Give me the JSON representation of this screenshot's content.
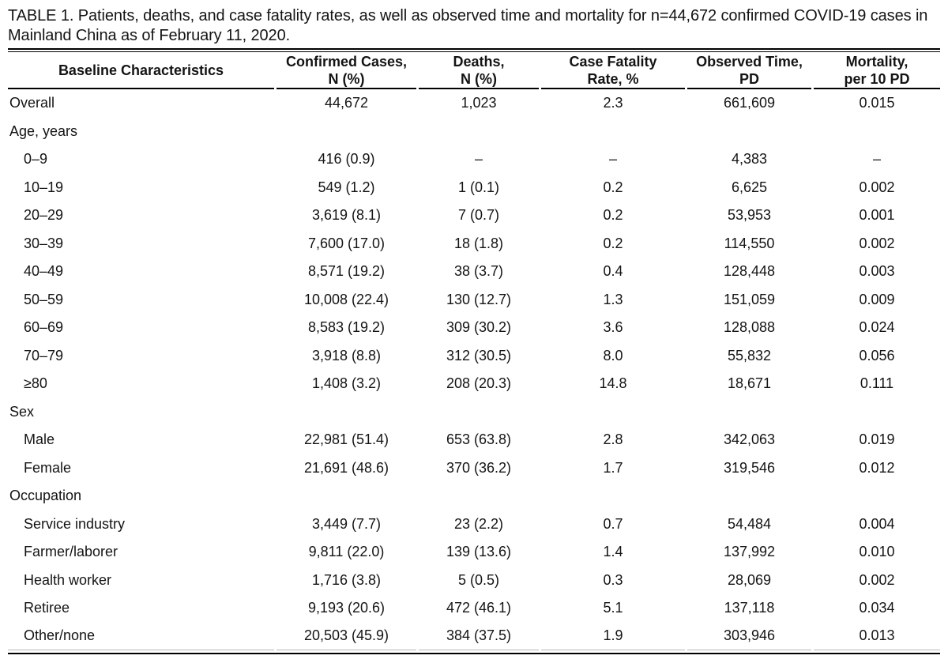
{
  "title": "TABLE 1. Patients, deaths, and case fatality rates, as well as observed time and mortality for n=44,672 confirmed COVID-19 cases in Mainland China as of February 11, 2020.",
  "colors": {
    "background": "#ffffff",
    "text": "#141414",
    "heavy_rule": "#000000",
    "light_rule": "#b8b8b8"
  },
  "table": {
    "columns": [
      {
        "line1": "Baseline Characteristics",
        "line2": ""
      },
      {
        "line1": "Confirmed Cases,",
        "line2": "N (%)"
      },
      {
        "line1": "Deaths,",
        "line2": "N (%)"
      },
      {
        "line1": "Case Fatality",
        "line2": "Rate, %"
      },
      {
        "line1": "Observed Time,",
        "line2": "PD"
      },
      {
        "line1": "Mortality,",
        "line2": "per 10 PD"
      }
    ],
    "missing_value_marker": "–",
    "rows": [
      {
        "label": "Overall",
        "indent": false,
        "section": false,
        "cells": [
          "44,672",
          "1,023",
          "2.3",
          "661,609",
          "0.015"
        ]
      },
      {
        "label": "Age, years",
        "indent": false,
        "section": true,
        "cells": [
          "",
          "",
          "",
          "",
          ""
        ]
      },
      {
        "label": "0–9",
        "indent": true,
        "section": false,
        "cells": [
          "416 (0.9)",
          "–",
          "–",
          "4,383",
          "–"
        ]
      },
      {
        "label": "10–19",
        "indent": true,
        "section": false,
        "cells": [
          "549 (1.2)",
          "1 (0.1)",
          "0.2",
          "6,625",
          "0.002"
        ]
      },
      {
        "label": "20–29",
        "indent": true,
        "section": false,
        "cells": [
          "3,619 (8.1)",
          "7 (0.7)",
          "0.2",
          "53,953",
          "0.001"
        ]
      },
      {
        "label": "30–39",
        "indent": true,
        "section": false,
        "cells": [
          "7,600 (17.0)",
          "18 (1.8)",
          "0.2",
          "114,550",
          "0.002"
        ]
      },
      {
        "label": "40–49",
        "indent": true,
        "section": false,
        "cells": [
          "8,571 (19.2)",
          "38 (3.7)",
          "0.4",
          "128,448",
          "0.003"
        ]
      },
      {
        "label": "50–59",
        "indent": true,
        "section": false,
        "cells": [
          "10,008 (22.4)",
          "130 (12.7)",
          "1.3",
          "151,059",
          "0.009"
        ]
      },
      {
        "label": "60–69",
        "indent": true,
        "section": false,
        "cells": [
          "8,583 (19.2)",
          "309 (30.2)",
          "3.6",
          "128,088",
          "0.024"
        ]
      },
      {
        "label": "70–79",
        "indent": true,
        "section": false,
        "cells": [
          "3,918 (8.8)",
          "312 (30.5)",
          "8.0",
          "55,832",
          "0.056"
        ]
      },
      {
        "label": "≥80",
        "indent": true,
        "section": false,
        "cells": [
          "1,408 (3.2)",
          "208 (20.3)",
          "14.8",
          "18,671",
          "0.111"
        ]
      },
      {
        "label": "Sex",
        "indent": false,
        "section": true,
        "cells": [
          "",
          "",
          "",
          "",
          ""
        ]
      },
      {
        "label": "Male",
        "indent": true,
        "section": false,
        "cells": [
          "22,981 (51.4)",
          "653 (63.8)",
          "2.8",
          "342,063",
          "0.019"
        ]
      },
      {
        "label": "Female",
        "indent": true,
        "section": false,
        "cells": [
          "21,691 (48.6)",
          "370 (36.2)",
          "1.7",
          "319,546",
          "0.012"
        ]
      },
      {
        "label": "Occupation",
        "indent": false,
        "section": true,
        "cells": [
          "",
          "",
          "",
          "",
          ""
        ]
      },
      {
        "label": "Service industry",
        "indent": true,
        "section": false,
        "cells": [
          "3,449 (7.7)",
          "23 (2.2)",
          "0.7",
          "54,484",
          "0.004"
        ]
      },
      {
        "label": "Farmer/laborer",
        "indent": true,
        "section": false,
        "cells": [
          "9,811 (22.0)",
          "139 (13.6)",
          "1.4",
          "137,992",
          "0.010"
        ]
      },
      {
        "label": "Health worker",
        "indent": true,
        "section": false,
        "cells": [
          "1,716 (3.8)",
          "5 (0.5)",
          "0.3",
          "28,069",
          "0.002"
        ]
      },
      {
        "label": "Retiree",
        "indent": true,
        "section": false,
        "cells": [
          "9,193 (20.6)",
          "472 (46.1)",
          "5.1",
          "137,118",
          "0.034"
        ]
      },
      {
        "label": "Other/none",
        "indent": true,
        "section": false,
        "cells": [
          "20,503 (45.9)",
          "384 (37.5)",
          "1.9",
          "303,946",
          "0.013"
        ]
      }
    ]
  }
}
